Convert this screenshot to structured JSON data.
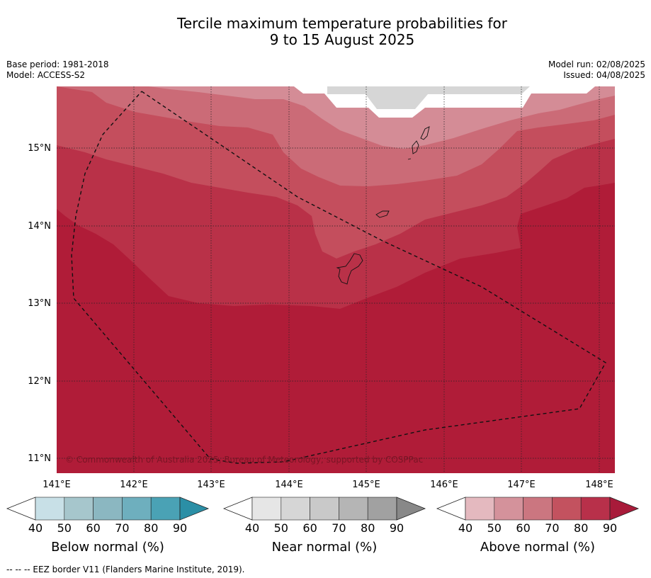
{
  "title": {
    "line1": "Tercile maximum temperature probabilities for",
    "line2": "9 to 15 August 2025"
  },
  "meta": {
    "base_period": "Base period: 1981-2018",
    "model": "Model: ACCESS-S2",
    "model_run": "Model run: 02/08/2025",
    "issued": "Issued: 04/08/2025"
  },
  "map": {
    "lat_labels": [
      "15°N",
      "14°N",
      "13°N",
      "12°N",
      "11°N"
    ],
    "lon_labels": [
      "141°E",
      "142°E",
      "143°E",
      "144°E",
      "145°E",
      "146°E",
      "147°E",
      "148°E"
    ],
    "copyright": "© Commonwealth of Australia 2025, Bureau of Meteorology, supported by COSPPac",
    "colors": {
      "above_50_60": "#d48c96",
      "above_60_70": "#cb6b77",
      "above_70_80": "#c44e5d",
      "above_80_90": "#b93148",
      "above_90": "#b01c38",
      "near_50_60": "#d6d6d6"
    }
  },
  "colorbars": [
    {
      "label": "Below normal (%)",
      "ticks": [
        "40",
        "50",
        "60",
        "70",
        "80",
        "90"
      ],
      "colors": [
        "#c8e0e7",
        "#a6c6cc",
        "#8bb7c1",
        "#6eafbe",
        "#4aa2b5",
        "#2b8fa6"
      ]
    },
    {
      "label": "Near normal (%)",
      "ticks": [
        "40",
        "50",
        "60",
        "70",
        "80",
        "90"
      ],
      "colors": [
        "#e6e6e6",
        "#d6d6d6",
        "#c9c9c9",
        "#b5b5b5",
        "#a1a1a1",
        "#888888"
      ]
    },
    {
      "label": "Above normal (%)",
      "ticks": [
        "40",
        "50",
        "60",
        "70",
        "80",
        "90"
      ],
      "colors": [
        "#e4b9bf",
        "#d4929b",
        "#cb7680",
        "#c3525f",
        "#b8304a",
        "#a81b3a"
      ]
    }
  ],
  "footnote": "-- -- -- EEZ border V11 (Flanders Marine Institute, 2019)."
}
